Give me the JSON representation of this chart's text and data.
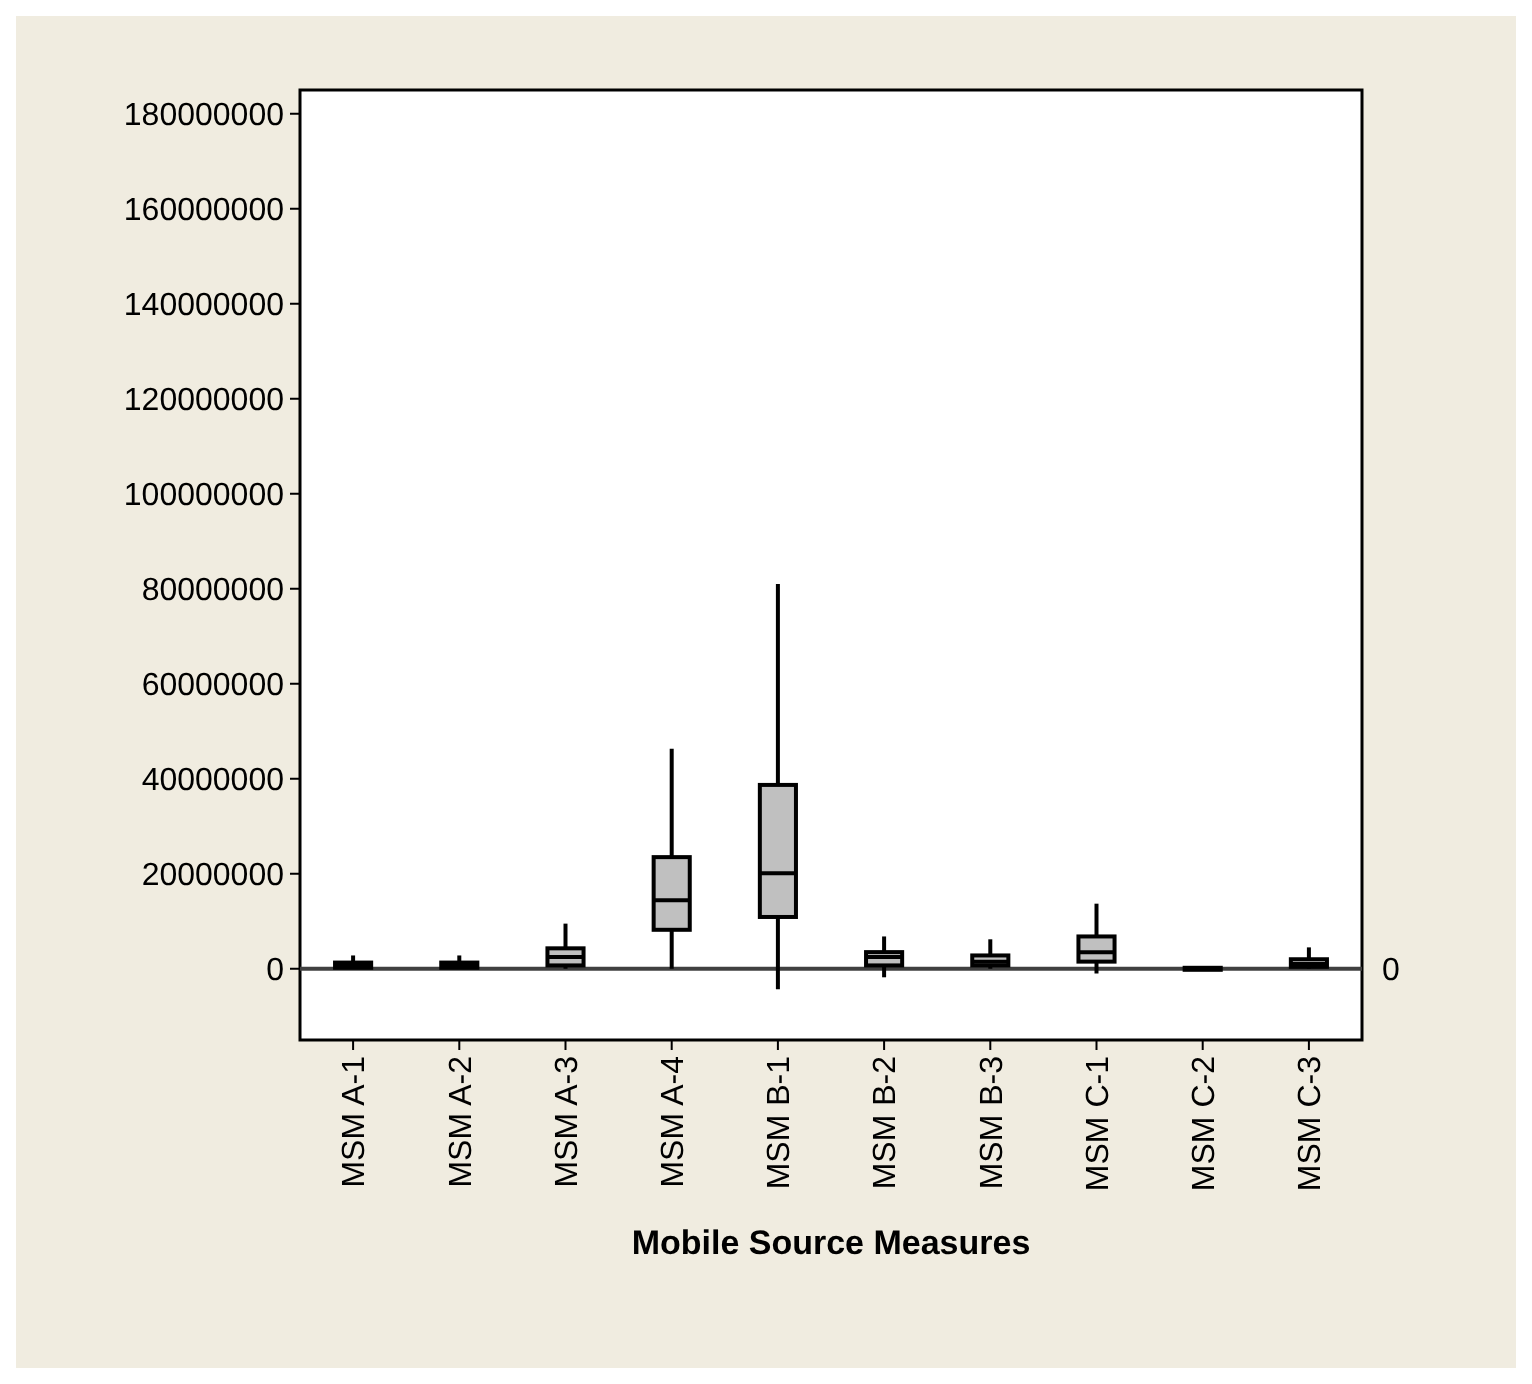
{
  "chart_data": {
    "type": "box",
    "xlabel": "Mobile Source Measures",
    "categories": [
      "MSM A-1",
      "MSM A-2",
      "MSM A-3",
      "MSM A-4",
      "MSM B-1",
      "MSM B-2",
      "MSM B-3",
      "MSM C-1",
      "MSM C-2",
      "MSM C-3"
    ],
    "color": "#c0c0c0",
    "boxes": [
      {
        "low": 0,
        "q1": 200000,
        "median": 600000,
        "q3": 1300000,
        "high": 2800000
      },
      {
        "low": 0,
        "q1": 200000,
        "median": 600000,
        "q3": 1300000,
        "high": 2800000
      },
      {
        "low": 0,
        "q1": 700000,
        "median": 2500000,
        "q3": 4300000,
        "high": 9500000
      },
      {
        "low": 0,
        "q1": 8200000,
        "median": 14400000,
        "q3": 23500000,
        "high": 46300000
      },
      {
        "low": -4300000,
        "q1": 10900000,
        "median": 20100000,
        "q3": 38700000,
        "high": 81000000
      },
      {
        "low": -1800000,
        "q1": 700000,
        "median": 2500000,
        "q3": 3500000,
        "high": 6800000
      },
      {
        "low": 0,
        "q1": 700000,
        "median": 1500000,
        "q3": 2800000,
        "high": 6200000
      },
      {
        "low": -1000000,
        "q1": 1500000,
        "median": 3500000,
        "q3": 6800000,
        "high": 13700000
      },
      {
        "low": -300000,
        "q1": -200000,
        "median": 0,
        "q3": 200000,
        "high": 200000
      },
      {
        "low": 0,
        "q1": 400000,
        "median": 1000000,
        "q3": 2000000,
        "high": 4500000
      }
    ],
    "ylim": [
      -15000000,
      185000000
    ],
    "yticks": [
      0,
      20000000,
      40000000,
      60000000,
      80000000,
      100000000,
      120000000,
      140000000,
      160000000,
      180000000
    ],
    "ref_lines": [
      {
        "axis": "y",
        "value": 0,
        "label": "0",
        "color": "#404040"
      }
    ],
    "grid": false
  }
}
